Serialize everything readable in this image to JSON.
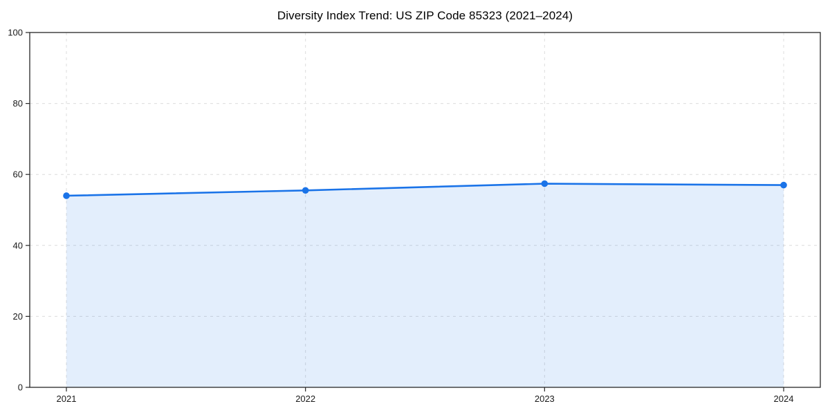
{
  "chart_data": {
    "type": "area",
    "title": "Diversity Index Trend: US ZIP Code 85323 (2021–2024)",
    "categories": [
      "2021",
      "2022",
      "2023",
      "2024"
    ],
    "series": [
      {
        "name": "Diversity Index",
        "values": [
          54,
          55.5,
          57.4,
          57
        ]
      }
    ],
    "xlabel": "",
    "ylabel": "",
    "ylim": [
      0,
      100
    ],
    "yticks": [
      0,
      20,
      40,
      60,
      80,
      100
    ],
    "grid": true,
    "grid_style": "dashed",
    "legend": false,
    "colors": {
      "line": "#1a73e8",
      "marker": "#1a73e8",
      "fill": "rgba(26,115,232,0.12)",
      "grid": "#dcdcdc",
      "spine": "#262626",
      "tick": "#262626",
      "tick_label": "#1a1a1a",
      "title": "#000000"
    }
  }
}
